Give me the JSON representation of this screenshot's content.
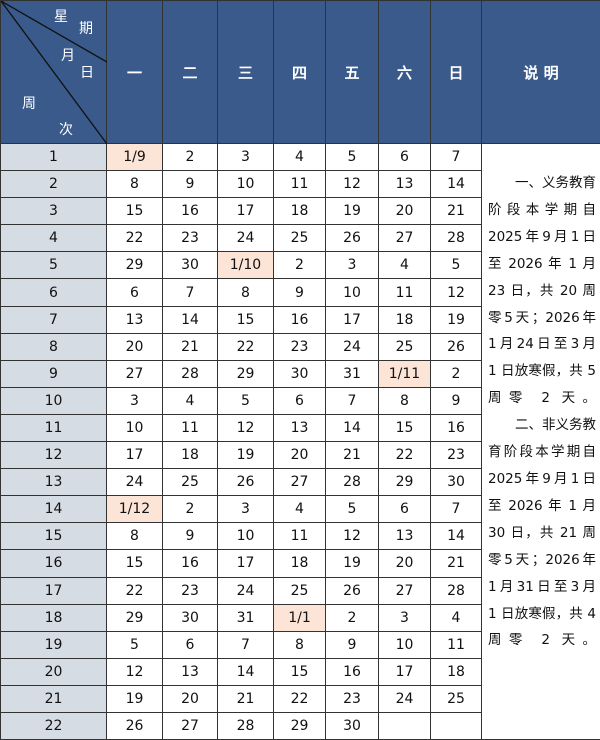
{
  "header": {
    "corner": {
      "weekday": [
        "星",
        "期"
      ],
      "date": [
        "月",
        "日"
      ],
      "week": [
        "周",
        "次"
      ]
    },
    "days": [
      "一",
      "二",
      "三",
      "四",
      "五",
      "六",
      "日"
    ],
    "notes": "说 明"
  },
  "colors": {
    "header": "#3a5a8c",
    "week_col": "#d6dce4",
    "highlight": "#fce4d6"
  },
  "rows": [
    [
      "1",
      "1/9",
      "2",
      "3",
      "4",
      "5",
      "6",
      "7"
    ],
    [
      "2",
      "8",
      "9",
      "10",
      "11",
      "12",
      "13",
      "14"
    ],
    [
      "3",
      "15",
      "16",
      "17",
      "18",
      "19",
      "20",
      "21"
    ],
    [
      "4",
      "22",
      "23",
      "24",
      "25",
      "26",
      "27",
      "28"
    ],
    [
      "5",
      "29",
      "30",
      "1/10",
      "2",
      "3",
      "4",
      "5"
    ],
    [
      "6",
      "6",
      "7",
      "8",
      "9",
      "10",
      "11",
      "12"
    ],
    [
      "7",
      "13",
      "14",
      "15",
      "16",
      "17",
      "18",
      "19"
    ],
    [
      "8",
      "20",
      "21",
      "22",
      "23",
      "24",
      "25",
      "26"
    ],
    [
      "9",
      "27",
      "28",
      "29",
      "30",
      "31",
      "1/11",
      "2"
    ],
    [
      "10",
      "3",
      "4",
      "5",
      "6",
      "7",
      "8",
      "9"
    ],
    [
      "11",
      "10",
      "11",
      "12",
      "13",
      "14",
      "15",
      "16"
    ],
    [
      "12",
      "17",
      "18",
      "19",
      "20",
      "21",
      "22",
      "23"
    ],
    [
      "13",
      "24",
      "25",
      "26",
      "27",
      "28",
      "29",
      "30"
    ],
    [
      "14",
      "1/12",
      "2",
      "3",
      "4",
      "5",
      "6",
      "7"
    ],
    [
      "15",
      "8",
      "9",
      "10",
      "11",
      "12",
      "13",
      "14"
    ],
    [
      "16",
      "15",
      "16",
      "17",
      "18",
      "19",
      "20",
      "21"
    ],
    [
      "17",
      "22",
      "23",
      "24",
      "25",
      "26",
      "27",
      "28"
    ],
    [
      "18",
      "29",
      "30",
      "31",
      "1/1",
      "2",
      "3",
      "4"
    ],
    [
      "19",
      "5",
      "6",
      "7",
      "8",
      "9",
      "10",
      "11"
    ],
    [
      "20",
      "12",
      "13",
      "14",
      "15",
      "16",
      "17",
      "18"
    ],
    [
      "21",
      "19",
      "20",
      "21",
      "22",
      "23",
      "24",
      "25"
    ],
    [
      "22",
      "26",
      "27",
      "28",
      "29",
      "30",
      "",
      ""
    ]
  ],
  "notes_lines": [
    "一、义务教育",
    "阶段本学期自",
    "2025年9月1日",
    "至 2026 年 1 月",
    "23 日，共 20 周",
    "零5天；2026年",
    "1月24日至3月",
    "1 日放寒假，共 5",
    "周零 2 天。",
    "二、非义务教",
    "育阶段本学期自",
    "2025年9月1日",
    "至 2026 年 1 月",
    "30 日，共 21 周",
    "零5天；2026年",
    "1月31日至3月",
    "1 日放寒假，共 4",
    "周零 2 天。"
  ]
}
